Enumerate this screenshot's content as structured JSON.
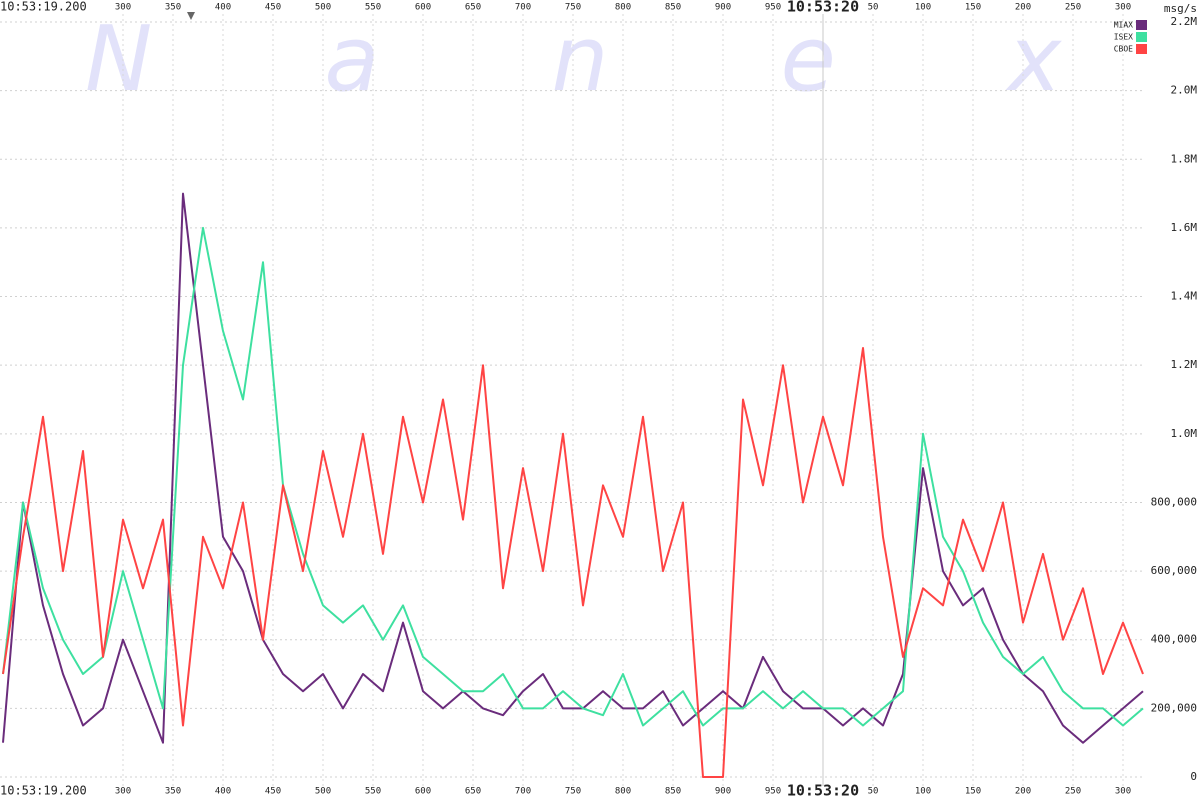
{
  "chart_data": {
    "type": "line",
    "watermark": "Nanex",
    "y_unit": "msg/s",
    "x": [
      180,
      200,
      220,
      240,
      260,
      280,
      300,
      320,
      340,
      360,
      380,
      400,
      420,
      440,
      460,
      480,
      500,
      520,
      540,
      560,
      580,
      600,
      620,
      640,
      660,
      680,
      700,
      720,
      740,
      760,
      780,
      800,
      820,
      840,
      860,
      880,
      900,
      920,
      940,
      960,
      980,
      1000,
      1020,
      1040,
      1060,
      1080,
      1100,
      1120,
      1140,
      1160,
      1180,
      1200,
      1220,
      1240,
      1260,
      1280,
      1300,
      1320
    ],
    "series": [
      {
        "name": "MIAX",
        "color": "#6a2c7c",
        "values": [
          100000,
          800000,
          500000,
          300000,
          150000,
          200000,
          400000,
          250000,
          100000,
          1700000,
          1200000,
          700000,
          600000,
          400000,
          300000,
          250000,
          300000,
          200000,
          300000,
          250000,
          450000,
          250000,
          200000,
          250000,
          200000,
          180000,
          250000,
          300000,
          200000,
          200000,
          250000,
          200000,
          200000,
          250000,
          150000,
          200000,
          250000,
          200000,
          350000,
          250000,
          200000,
          200000,
          150000,
          200000,
          150000,
          300000,
          900000,
          600000,
          500000,
          550000,
          400000,
          300000,
          250000,
          150000,
          100000,
          150000,
          200000,
          250000
        ]
      },
      {
        "name": "ISEX",
        "color": "#3ee0a0",
        "values": [
          300000,
          800000,
          550000,
          400000,
          300000,
          350000,
          600000,
          400000,
          200000,
          1200000,
          1600000,
          1300000,
          1100000,
          1500000,
          850000,
          650000,
          500000,
          450000,
          500000,
          400000,
          500000,
          350000,
          300000,
          250000,
          250000,
          300000,
          200000,
          200000,
          250000,
          200000,
          180000,
          300000,
          150000,
          200000,
          250000,
          150000,
          200000,
          200000,
          250000,
          200000,
          250000,
          200000,
          200000,
          150000,
          200000,
          250000,
          1000000,
          700000,
          600000,
          450000,
          350000,
          300000,
          350000,
          250000,
          200000,
          200000,
          150000,
          200000
        ]
      },
      {
        "name": "CBOE",
        "color": "#ff4444",
        "values": [
          300000,
          700000,
          1050000,
          600000,
          950000,
          350000,
          750000,
          550000,
          750000,
          150000,
          700000,
          550000,
          800000,
          400000,
          850000,
          600000,
          950000,
          700000,
          1000000,
          650000,
          1050000,
          800000,
          1100000,
          750000,
          1200000,
          550000,
          900000,
          600000,
          1000000,
          500000,
          850000,
          700000,
          1050000,
          600000,
          800000,
          0,
          0,
          1100000,
          850000,
          1200000,
          800000,
          1050000,
          850000,
          1250000,
          700000,
          350000,
          550000,
          500000,
          750000,
          600000,
          800000,
          450000,
          650000,
          400000,
          550000,
          300000,
          450000,
          300000
        ]
      }
    ],
    "xlim": [
      177,
      1322
    ],
    "xticks": [
      {
        "value": 200,
        "label": "10:53:19.200"
      },
      300,
      350,
      400,
      450,
      500,
      550,
      600,
      650,
      700,
      750,
      800,
      850,
      900,
      950,
      {
        "value": 1000,
        "label": "10:53:20"
      },
      {
        "value": 1050,
        "label": "50"
      },
      {
        "value": 1100,
        "label": "100"
      },
      {
        "value": 1150,
        "label": "150"
      },
      {
        "value": 1200,
        "label": "200"
      },
      {
        "value": 1250,
        "label": "250"
      },
      {
        "value": 1300,
        "label": "300"
      }
    ],
    "ylim": [
      0,
      2200000
    ],
    "yticks": [
      0,
      {
        "value": 200000,
        "label": "200,000"
      },
      {
        "value": 400000,
        "label": "400,000"
      },
      {
        "value": 600000,
        "label": "600,000"
      },
      {
        "value": 800000,
        "label": "800,000"
      },
      {
        "value": 1000000,
        "label": "1.0M"
      },
      {
        "value": 1200000,
        "label": "1.2M"
      },
      {
        "value": 1400000,
        "label": "1.4M"
      },
      {
        "value": 1600000,
        "label": "1.6M"
      },
      {
        "value": 1800000,
        "label": "1.8M"
      },
      {
        "value": 2000000,
        "label": "2.0M"
      },
      {
        "value": 2200000,
        "label": "2.2M"
      }
    ],
    "grid": true
  }
}
